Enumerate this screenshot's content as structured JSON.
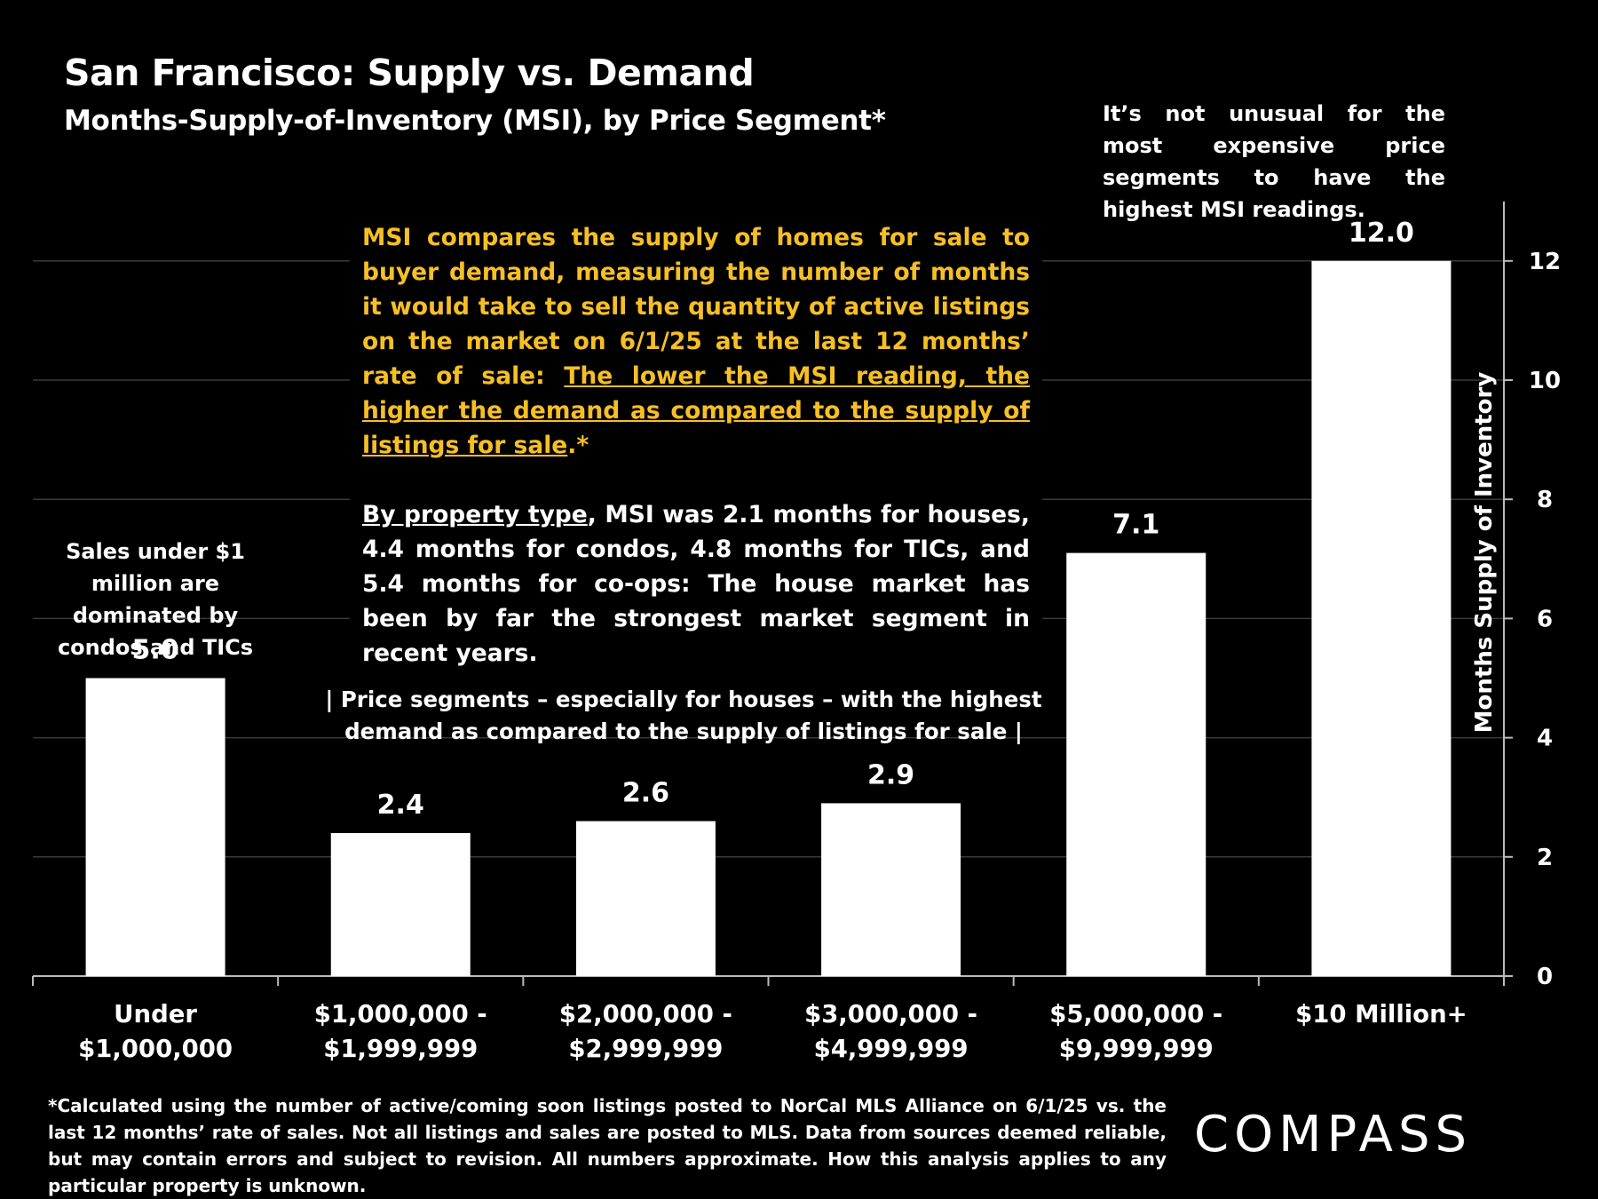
{
  "title": "San Francisco: Supply vs. Demand",
  "subtitle": "Months-Supply-of-Inventory (MSI), by Price Segment*",
  "note_right": "It’s not unusual for the most expensive price segments to have the highest MSI readings.",
  "msi_explainer": {
    "intro": "MSI compares the supply of homes for sale to buyer demand, measuring the number of months it would take to sell the quantity of active listings on the market on 6/1/25 at the last 12 months’ rate of sale: ",
    "underlined": "The lower the MSI reading, the higher the demand as compared to the supply of listings for sale",
    "suffix": ".*"
  },
  "property_type_note": {
    "underlined": "By property type",
    "rest": ", MSI was 2.1 months for houses, 4.4 months for condos, 4.8 months for TICs, and 5.4 months for co-ops:  The house market has been by far the strongest market segment in recent years."
  },
  "note_left": "Sales under $1 million are dominated by condos and TICs",
  "note_mid": "| Price segments – especially for houses – with the highest demand as compared to the supply of listings for sale |",
  "footnote": "*Calculated using the number of active/coming soon listings posted to NorCal MLS Alliance on 6/1/25 vs. the last 12 months’ rate of sales. Not all listings and sales are posted to MLS. Data from sources deemed reliable, but may contain errors and subject to revision. All numbers approximate. How this analysis applies to any particular property is unknown.",
  "logo_text": "COMPASS",
  "colors": {
    "background": "#000000",
    "bar": "#ffffff",
    "accent": "#f6bf26",
    "grid": "#3a3a3a"
  },
  "chart_data": {
    "type": "bar",
    "title": "San Francisco: Supply vs. Demand",
    "subtitle": "Months-Supply-of-Inventory (MSI), by Price Segment*",
    "categories": [
      [
        "Under",
        "$1,000,000"
      ],
      [
        "$1,000,000 -",
        "$1,999,999"
      ],
      [
        "$2,000,000 -",
        "$2,999,999"
      ],
      [
        "$3,000,000 -",
        "$4,999,999"
      ],
      [
        "$5,000,000 -",
        "$9,999,999"
      ],
      [
        "$10 Million+"
      ]
    ],
    "values": [
      5.0,
      2.4,
      2.6,
      2.9,
      7.1,
      12.0
    ],
    "value_labels": [
      "5.0",
      "2.4",
      "2.6",
      "2.9",
      "7.1",
      "12.0"
    ],
    "ylabel": "Months Supply of Inventory",
    "ylim": [
      0,
      13
    ],
    "yticks": [
      0,
      2,
      4,
      6,
      8,
      10,
      12
    ],
    "y_axis_side": "right",
    "grid": true
  }
}
